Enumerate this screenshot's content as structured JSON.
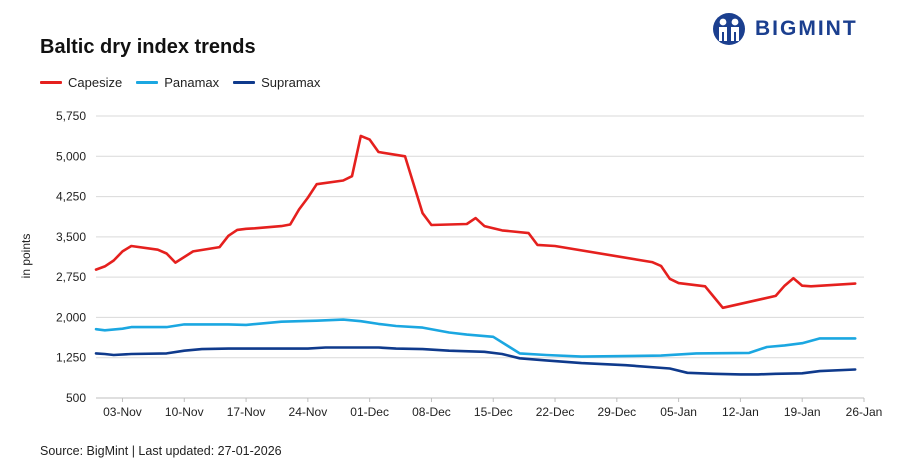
{
  "brand": {
    "name": "BIGMINT",
    "color": "#1b3f8f"
  },
  "source_text": "Source: BigMint | Last updated: 27-01-2026",
  "chart_data": {
    "type": "line",
    "title": "Baltic dry index trends",
    "xlabel": "",
    "ylabel": "in points",
    "ylim": [
      500,
      5750
    ],
    "yticks": [
      500,
      1250,
      2000,
      2750,
      3500,
      4250,
      5000,
      5750
    ],
    "ytick_labels": [
      "500",
      "1,250",
      "2,000",
      "2,750",
      "3,500",
      "4,250",
      "5,000",
      "5,750"
    ],
    "xticks": [
      "03-Nov",
      "10-Nov",
      "17-Nov",
      "24-Nov",
      "01-Dec",
      "08-Dec",
      "15-Dec",
      "22-Dec",
      "29-Dec",
      "05-Jan",
      "12-Jan",
      "19-Jan",
      "26-Jan"
    ],
    "xlim": [
      "2025-10-31",
      "2026-01-26"
    ],
    "grid": true,
    "legend_position": "top-left",
    "series": [
      {
        "name": "Capesize",
        "color": "#e5201e",
        "points": [
          [
            "2025-10-31",
            2890
          ],
          [
            "2025-11-01",
            2950
          ],
          [
            "2025-11-02",
            3060
          ],
          [
            "2025-11-03",
            3230
          ],
          [
            "2025-11-04",
            3330
          ],
          [
            "2025-11-07",
            3260
          ],
          [
            "2025-11-08",
            3190
          ],
          [
            "2025-11-09",
            3020
          ],
          [
            "2025-11-11",
            3230
          ],
          [
            "2025-11-14",
            3310
          ],
          [
            "2025-11-15",
            3520
          ],
          [
            "2025-11-16",
            3630
          ],
          [
            "2025-11-17",
            3650
          ],
          [
            "2025-11-18",
            3660
          ],
          [
            "2025-11-21",
            3700
          ],
          [
            "2025-11-22",
            3730
          ],
          [
            "2025-11-23",
            4010
          ],
          [
            "2025-11-24",
            4230
          ],
          [
            "2025-11-25",
            4480
          ],
          [
            "2025-11-28",
            4550
          ],
          [
            "2025-11-29",
            4630
          ],
          [
            "2025-11-30",
            5380
          ],
          [
            "2025-12-01",
            5310
          ],
          [
            "2025-12-02",
            5080
          ],
          [
            "2025-12-05",
            5000
          ],
          [
            "2025-12-07",
            3940
          ],
          [
            "2025-12-08",
            3720
          ],
          [
            "2025-12-12",
            3740
          ],
          [
            "2025-12-13",
            3850
          ],
          [
            "2025-12-14",
            3700
          ],
          [
            "2025-12-15",
            3660
          ],
          [
            "2025-12-16",
            3620
          ],
          [
            "2025-12-19",
            3570
          ],
          [
            "2025-12-20",
            3350
          ],
          [
            "2025-12-22",
            3330
          ],
          [
            "2026-01-02",
            3030
          ],
          [
            "2026-01-03",
            2960
          ],
          [
            "2026-01-04",
            2720
          ],
          [
            "2026-01-05",
            2640
          ],
          [
            "2026-01-08",
            2580
          ],
          [
            "2026-01-09",
            2380
          ],
          [
            "2026-01-10",
            2180
          ],
          [
            "2026-01-16",
            2400
          ],
          [
            "2026-01-17",
            2590
          ],
          [
            "2026-01-18",
            2730
          ],
          [
            "2026-01-19",
            2590
          ],
          [
            "2026-01-20",
            2580
          ],
          [
            "2026-01-25",
            2630
          ]
        ]
      },
      {
        "name": "Panamax",
        "color": "#1ba7e1",
        "points": [
          [
            "2025-10-31",
            1780
          ],
          [
            "2025-11-01",
            1760
          ],
          [
            "2025-11-03",
            1790
          ],
          [
            "2025-11-04",
            1820
          ],
          [
            "2025-11-08",
            1820
          ],
          [
            "2025-11-10",
            1870
          ],
          [
            "2025-11-15",
            1870
          ],
          [
            "2025-11-17",
            1860
          ],
          [
            "2025-11-21",
            1920
          ],
          [
            "2025-11-25",
            1940
          ],
          [
            "2025-11-28",
            1960
          ],
          [
            "2025-11-30",
            1930
          ],
          [
            "2025-12-02",
            1880
          ],
          [
            "2025-12-04",
            1840
          ],
          [
            "2025-12-07",
            1810
          ],
          [
            "2025-12-10",
            1720
          ],
          [
            "2025-12-12",
            1680
          ],
          [
            "2025-12-15",
            1640
          ],
          [
            "2025-12-18",
            1330
          ],
          [
            "2025-12-21",
            1300
          ],
          [
            "2025-12-25",
            1270
          ],
          [
            "2026-01-03",
            1290
          ],
          [
            "2026-01-07",
            1330
          ],
          [
            "2026-01-13",
            1340
          ],
          [
            "2026-01-15",
            1450
          ],
          [
            "2026-01-17",
            1480
          ],
          [
            "2026-01-19",
            1520
          ],
          [
            "2026-01-21",
            1610
          ],
          [
            "2026-01-25",
            1610
          ]
        ]
      },
      {
        "name": "Supramax",
        "color": "#0f3a8c",
        "points": [
          [
            "2025-10-31",
            1330
          ],
          [
            "2025-11-01",
            1320
          ],
          [
            "2025-11-02",
            1300
          ],
          [
            "2025-11-04",
            1320
          ],
          [
            "2025-11-08",
            1330
          ],
          [
            "2025-11-10",
            1380
          ],
          [
            "2025-11-12",
            1410
          ],
          [
            "2025-11-15",
            1420
          ],
          [
            "2025-11-24",
            1420
          ],
          [
            "2025-11-26",
            1440
          ],
          [
            "2025-12-02",
            1440
          ],
          [
            "2025-12-04",
            1420
          ],
          [
            "2025-12-07",
            1410
          ],
          [
            "2025-12-10",
            1380
          ],
          [
            "2025-12-14",
            1360
          ],
          [
            "2025-12-16",
            1320
          ],
          [
            "2025-12-18",
            1240
          ],
          [
            "2025-12-21",
            1200
          ],
          [
            "2025-12-25",
            1150
          ],
          [
            "2025-12-30",
            1110
          ],
          [
            "2026-01-04",
            1050
          ],
          [
            "2026-01-06",
            970
          ],
          [
            "2026-01-09",
            950
          ],
          [
            "2026-01-12",
            940
          ],
          [
            "2026-01-14",
            940
          ],
          [
            "2026-01-16",
            950
          ],
          [
            "2026-01-19",
            960
          ],
          [
            "2026-01-21",
            1000
          ],
          [
            "2026-01-25",
            1030
          ]
        ]
      }
    ]
  }
}
